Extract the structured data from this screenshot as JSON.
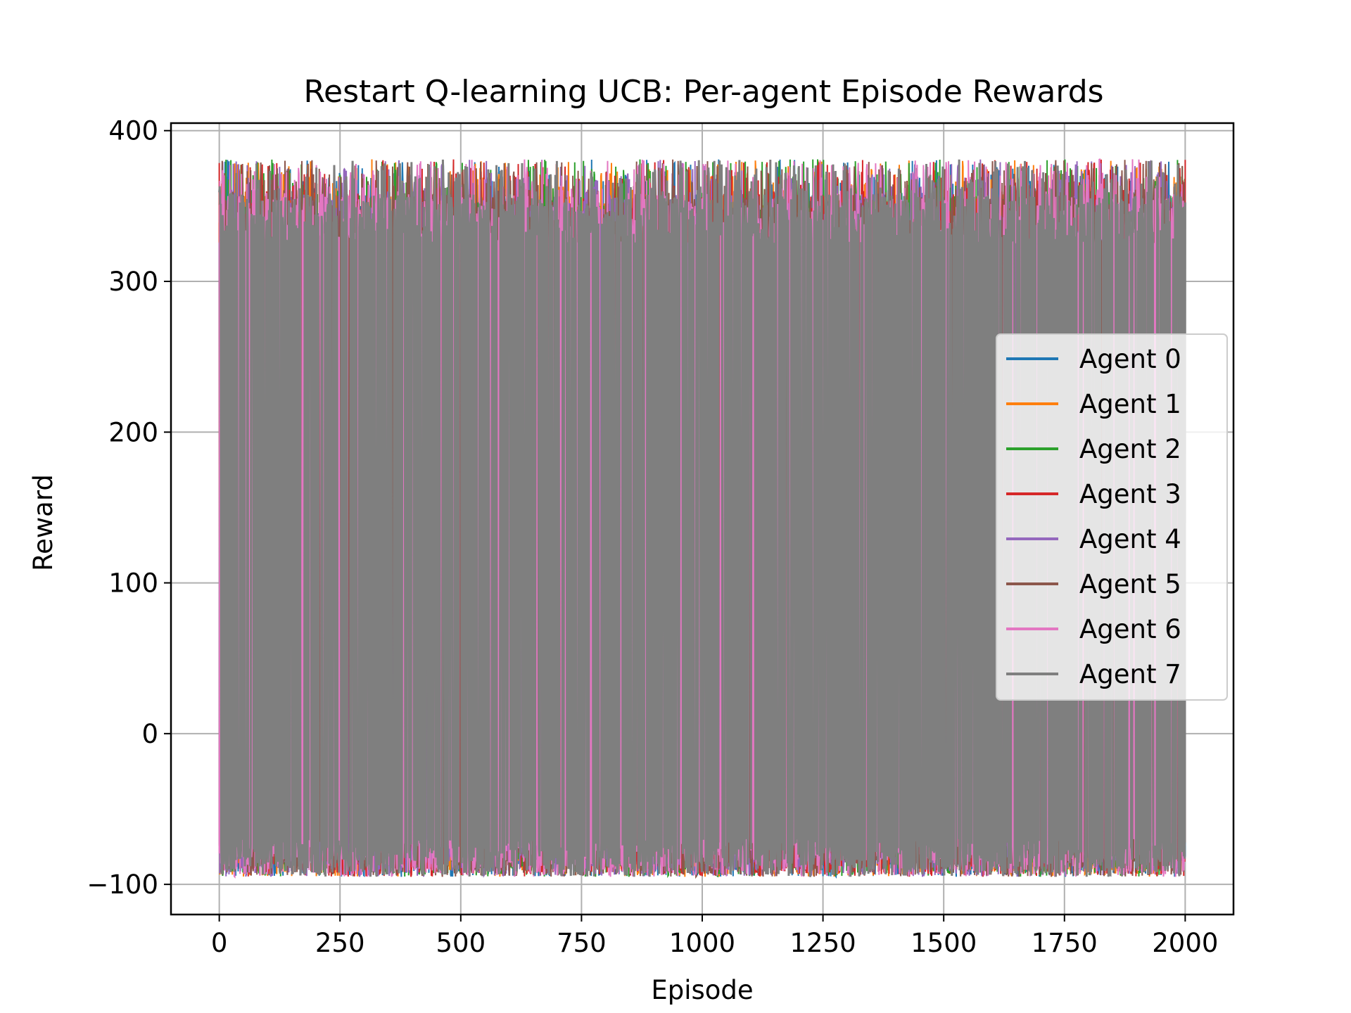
{
  "chart_data": {
    "type": "line",
    "title": "Restart Q-learning UCB: Per-agent Episode Rewards",
    "xlabel": "Episode",
    "ylabel": "Reward",
    "xlim": [
      -100,
      2100
    ],
    "ylim": [
      -120,
      405
    ],
    "xticks": [
      0,
      250,
      500,
      750,
      1000,
      1250,
      1500,
      1750,
      2000
    ],
    "xtick_labels": [
      "0",
      "250",
      "500",
      "750",
      "1000",
      "1250",
      "1500",
      "1750",
      "2000"
    ],
    "yticks": [
      -100,
      0,
      100,
      200,
      300,
      400
    ],
    "ytick_labels": [
      "−100",
      "0",
      "100",
      "200",
      "300",
      "400"
    ],
    "grid": true,
    "legend_position": "center-right",
    "episodes": [
      0,
      2000
    ],
    "value_range": {
      "low": -95,
      "typical_high": 358,
      "peak": 381
    },
    "series": [
      {
        "name": "Agent 0",
        "color": "#1f77b4"
      },
      {
        "name": "Agent 1",
        "color": "#ff7f0e"
      },
      {
        "name": "Agent 2",
        "color": "#2ca02c"
      },
      {
        "name": "Agent 3",
        "color": "#d62728"
      },
      {
        "name": "Agent 4",
        "color": "#9467bd"
      },
      {
        "name": "Agent 5",
        "color": "#8c564b"
      },
      {
        "name": "Agent 6",
        "color": "#e377c2"
      },
      {
        "name": "Agent 7",
        "color": "#7f7f7f"
      }
    ]
  }
}
